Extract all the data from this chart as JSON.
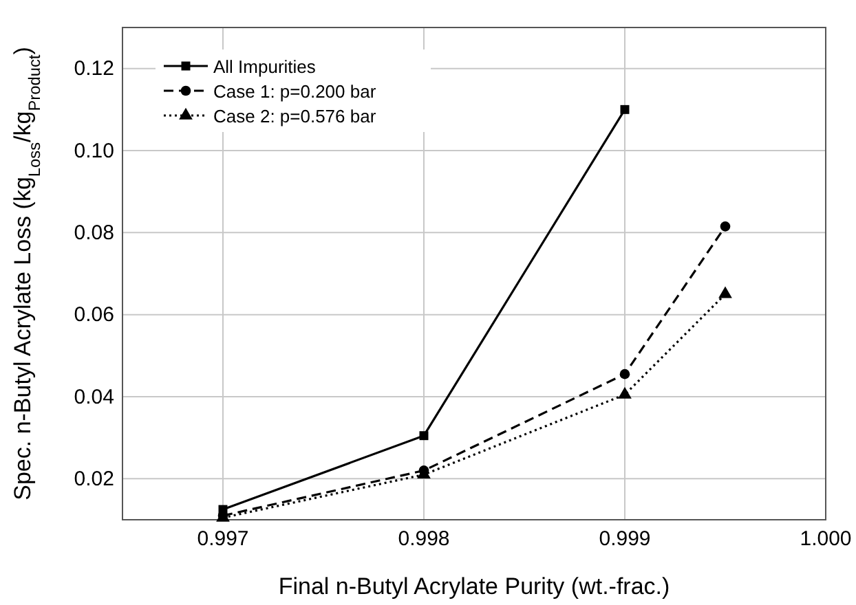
{
  "chart_data": {
    "type": "line",
    "xlabel": "Final n-Butyl Acrylate Purity (wt.-frac.)",
    "ylabel": "Spec. n-Butyl Acrylate Loss (kg$_{Loss}$/kg$_{Product}$)",
    "xlim": [
      0.9965,
      1.0
    ],
    "xticks": [
      {
        "value": 0.997,
        "label": "0.997"
      },
      {
        "value": 0.998,
        "label": "0.998"
      },
      {
        "value": 0.999,
        "label": "0.999"
      },
      {
        "value": 1.0,
        "label": "1.000"
      }
    ],
    "ylim": [
      0.01,
      0.13
    ],
    "yticks": [
      {
        "value": 0.02,
        "label": "0.02"
      },
      {
        "value": 0.04,
        "label": "0.04"
      },
      {
        "value": 0.06,
        "label": "0.06"
      },
      {
        "value": 0.08,
        "label": "0.08"
      },
      {
        "value": 0.1,
        "label": "0.10"
      },
      {
        "value": 0.12,
        "label": "0.12"
      }
    ],
    "grid": true,
    "legend": "top left",
    "series": [
      {
        "name": "All Impurities",
        "color": "#000000",
        "marker": "square",
        "line_style": "solid",
        "x": [
          0.997,
          0.998,
          0.999
        ],
        "values": [
          0.0125,
          0.0305,
          0.11
        ]
      },
      {
        "name": "Case 1: p=0.200 bar",
        "color": "#000000",
        "marker": "circle",
        "line_style": "dashed",
        "x": [
          0.997,
          0.998,
          0.999,
          0.9995
        ],
        "values": [
          0.011,
          0.022,
          0.0455,
          0.0815
        ]
      },
      {
        "name": "Case 2: p=0.576 bar",
        "color": "#000000",
        "marker": "triangle",
        "line_style": "dotted",
        "x": [
          0.997,
          0.998,
          0.999,
          0.9995
        ],
        "values": [
          0.0105,
          0.021,
          0.0405,
          0.065
        ]
      }
    ]
  }
}
